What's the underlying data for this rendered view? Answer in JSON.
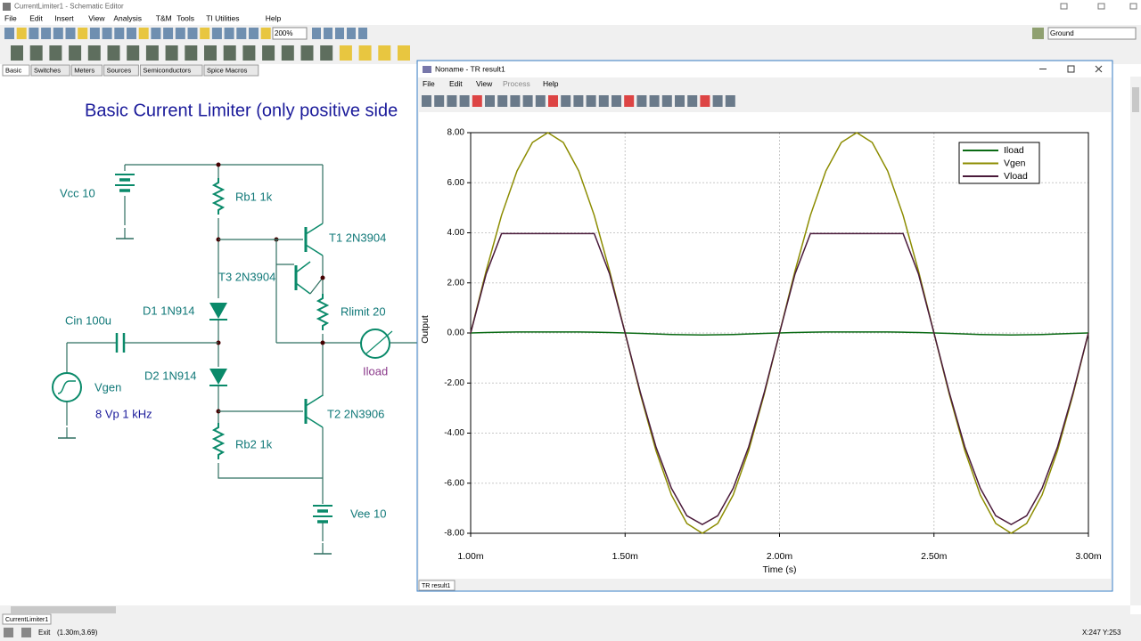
{
  "window": {
    "title": "CurrentLimiter1 - Schematic Editor",
    "menu": [
      "File",
      "Edit",
      "Insert",
      "View",
      "Analysis",
      "T&M",
      "Tools",
      "TI Utilities",
      "Help"
    ],
    "zoom": "200%",
    "ground": "Ground",
    "tabs": [
      "Basic",
      "Switches",
      "Meters",
      "Sources",
      "Semiconductors",
      "Spice Macros"
    ]
  },
  "schematic": {
    "title": "Basic Current Limiter (only positive side",
    "labels": [
      "Vcc 10",
      "Rb1 1k",
      "T1 2N3904",
      "T3 2N3904",
      "Rlimit 20",
      "D1 1N914",
      "Cin 100u",
      "Iload",
      "D2 1N914",
      "Vgen",
      "8 Vp 1 kHz",
      "T2 2N3906",
      "Rb2 1k",
      "Vee 10"
    ]
  },
  "result_window": {
    "title": "Noname - TR result1",
    "menu": [
      "File",
      "Edit",
      "View",
      "Process",
      "Help"
    ],
    "tab": "TR result1"
  },
  "status": {
    "doc_tab": "CurrentLimiter1",
    "exit": "Exit",
    "cursor": "(1.30m,3.69)",
    "coords": "X:247  Y:253"
  },
  "chart_data": {
    "type": "line",
    "xlabel": "Time (s)",
    "ylabel": "Output",
    "grid": true,
    "legend": "upper right",
    "x": [
      0.001,
      0.00105,
      0.0011,
      0.00115,
      0.0012,
      0.00125,
      0.0013,
      0.00135,
      0.0014,
      0.00145,
      0.0015,
      0.00155,
      0.0016,
      0.00165,
      0.0017,
      0.00175,
      0.0018,
      0.00185,
      0.0019,
      0.00195,
      0.002,
      0.00205,
      0.0021,
      0.00215,
      0.0022,
      0.00225,
      0.0023,
      0.00235,
      0.0024,
      0.00245,
      0.0025,
      0.00255,
      0.0026,
      0.00265,
      0.0027,
      0.00275,
      0.0028,
      0.00285,
      0.0029,
      0.00295,
      0.003
    ],
    "series": [
      {
        "name": "Iload",
        "color": "#0a6a14",
        "values": [
          0,
          0.02,
          0.03,
          0.04,
          0.04,
          0.04,
          0.04,
          0.04,
          0.03,
          0.02,
          0,
          -0.02,
          -0.04,
          -0.06,
          -0.07,
          -0.08,
          -0.07,
          -0.06,
          -0.04,
          -0.02,
          0,
          0.02,
          0.03,
          0.04,
          0.04,
          0.04,
          0.04,
          0.04,
          0.03,
          0.02,
          0,
          -0.02,
          -0.04,
          -0.06,
          -0.07,
          -0.08,
          -0.07,
          -0.06,
          -0.04,
          -0.02,
          0
        ]
      },
      {
        "name": "Vgen",
        "color": "#8c8c00",
        "values": [
          0,
          2.47,
          4.7,
          6.47,
          7.61,
          8,
          7.61,
          6.47,
          4.7,
          2.47,
          0,
          -2.47,
          -4.7,
          -6.47,
          -7.61,
          -8,
          -7.61,
          -6.47,
          -4.7,
          -2.47,
          0,
          2.47,
          4.7,
          6.47,
          7.61,
          8,
          7.61,
          6.47,
          4.7,
          2.47,
          0,
          -2.47,
          -4.7,
          -6.47,
          -7.61,
          -8,
          -7.61,
          -6.47,
          -4.7,
          -2.47,
          0
        ]
      },
      {
        "name": "Vload",
        "color": "#4a1a3a",
        "values": [
          0,
          2.35,
          3.97,
          3.97,
          3.97,
          3.97,
          3.97,
          3.97,
          3.97,
          2.35,
          0,
          -2.4,
          -4.55,
          -6.2,
          -7.3,
          -7.65,
          -7.3,
          -6.2,
          -4.55,
          -2.4,
          0,
          2.35,
          3.97,
          3.97,
          3.97,
          3.97,
          3.97,
          3.97,
          3.97,
          2.35,
          0,
          -2.4,
          -4.55,
          -6.2,
          -7.3,
          -7.65,
          -7.3,
          -6.2,
          -4.55,
          -2.4,
          0
        ]
      }
    ],
    "xlim": [
      0.001,
      0.003
    ],
    "xticks": [
      {
        "value": 0.001,
        "label": "1.00m"
      },
      {
        "value": 0.0015,
        "label": "1.50m"
      },
      {
        "value": 0.002,
        "label": "2.00m"
      },
      {
        "value": 0.0025,
        "label": "2.50m"
      },
      {
        "value": 0.003,
        "label": "3.00m"
      }
    ],
    "ylim": [
      -8,
      8
    ],
    "yticks": [
      {
        "value": -8,
        "label": "-8.00"
      },
      {
        "value": -6,
        "label": "-6.00"
      },
      {
        "value": -4,
        "label": "-4.00"
      },
      {
        "value": -2,
        "label": "-2.00"
      },
      {
        "value": 0,
        "label": "0.00"
      },
      {
        "value": 2,
        "label": "2.00"
      },
      {
        "value": 4,
        "label": "4.00"
      },
      {
        "value": 6,
        "label": "6.00"
      },
      {
        "value": 8,
        "label": "8.00"
      }
    ]
  }
}
